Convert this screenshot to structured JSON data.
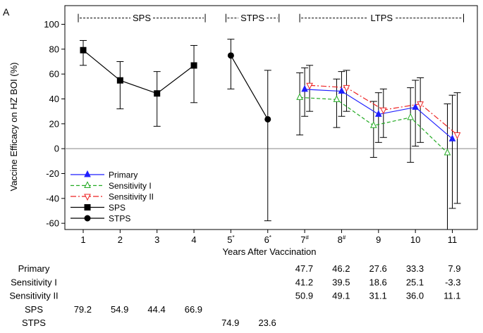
{
  "chart_data": {
    "type": "line",
    "panel_label": "A",
    "xlabel": "Years After Vaccination",
    "ylabel": "Vaccine Efficacy on HZ BOI (%)",
    "ylim": [
      -65,
      115
    ],
    "yticks": [
      -60,
      -40,
      -20,
      0,
      20,
      40,
      60,
      80,
      100
    ],
    "categories": [
      {
        "base": "1",
        "sup": ""
      },
      {
        "base": "2",
        "sup": ""
      },
      {
        "base": "3",
        "sup": ""
      },
      {
        "base": "4",
        "sup": ""
      },
      {
        "base": "5",
        "sup": "*"
      },
      {
        "base": "6",
        "sup": "*"
      },
      {
        "base": "7",
        "sup": "#"
      },
      {
        "base": "8",
        "sup": "#"
      },
      {
        "base": "9",
        "sup": ""
      },
      {
        "base": "10",
        "sup": ""
      },
      {
        "base": "11",
        "sup": ""
      }
    ],
    "reference_line": 0,
    "groups": [
      {
        "label": "SPS",
        "from": 1,
        "to": 4
      },
      {
        "label": "STPS",
        "from": 5,
        "to": 6
      },
      {
        "label": "LTPS",
        "from": 7,
        "to": 11
      }
    ],
    "series": [
      {
        "name": "Primary",
        "color": "#1f1fff",
        "line": "solid",
        "marker": "triangle-up",
        "filled": true,
        "points": [
          {
            "x": 7,
            "y": 47.7,
            "lo": 26.0,
            "hi": 65.0
          },
          {
            "x": 8,
            "y": 46.2,
            "lo": 26.0,
            "hi": 62.0
          },
          {
            "x": 9,
            "y": 27.6,
            "lo": 5.0,
            "hi": 45.0
          },
          {
            "x": 10,
            "y": 33.3,
            "lo": 2.0,
            "hi": 55.0
          },
          {
            "x": 11,
            "y": 7.9,
            "lo": -48.0,
            "hi": 43.0
          }
        ]
      },
      {
        "name": "Sensitivity I",
        "color": "#22aa22",
        "line": "dashed",
        "marker": "triangle-up",
        "filled": false,
        "points": [
          {
            "x": 7,
            "y": 41.2,
            "lo": 11.0,
            "hi": 61.0
          },
          {
            "x": 8,
            "y": 39.5,
            "lo": 17.0,
            "hi": 56.0
          },
          {
            "x": 9,
            "y": 18.6,
            "lo": -7.0,
            "hi": 38.0
          },
          {
            "x": 10,
            "y": 25.1,
            "lo": -11.0,
            "hi": 49.0
          },
          {
            "x": 11,
            "y": -3.3,
            "lo": -65.0,
            "hi": 36.0
          }
        ]
      },
      {
        "name": "Sensitivity II",
        "color": "#ee2222",
        "line": "dashdot",
        "marker": "triangle-down",
        "filled": false,
        "points": [
          {
            "x": 7,
            "y": 50.9,
            "lo": 30.0,
            "hi": 67.0
          },
          {
            "x": 8,
            "y": 49.1,
            "lo": 30.0,
            "hi": 63.0
          },
          {
            "x": 9,
            "y": 31.1,
            "lo": 9.0,
            "hi": 48.0
          },
          {
            "x": 10,
            "y": 36.0,
            "lo": 5.0,
            "hi": 57.0
          },
          {
            "x": 11,
            "y": 11.1,
            "lo": -44.0,
            "hi": 45.0
          }
        ]
      },
      {
        "name": "SPS",
        "color": "#000000",
        "line": "solid",
        "marker": "square",
        "filled": true,
        "points": [
          {
            "x": 1,
            "y": 79.2,
            "lo": 67.0,
            "hi": 87.0
          },
          {
            "x": 2,
            "y": 54.9,
            "lo": 32.0,
            "hi": 70.0
          },
          {
            "x": 3,
            "y": 44.4,
            "lo": 18.0,
            "hi": 62.0
          },
          {
            "x": 4,
            "y": 66.9,
            "lo": 37.0,
            "hi": 83.0
          }
        ]
      },
      {
        "name": "STPS",
        "color": "#000000",
        "line": "solid",
        "marker": "circle",
        "filled": true,
        "points": [
          {
            "x": 5,
            "y": 74.9,
            "lo": 48.0,
            "hi": 88.0
          },
          {
            "x": 6,
            "y": 23.6,
            "lo": -58.0,
            "hi": 63.0
          }
        ]
      }
    ],
    "legend_position": "lower-left",
    "table": {
      "rows": [
        {
          "label": "Primary",
          "values": [
            "",
            "",
            "",
            "",
            "",
            "",
            "47.7",
            "46.2",
            "27.6",
            "33.3",
            "7.9"
          ]
        },
        {
          "label": "Sensitivity I",
          "values": [
            "",
            "",
            "",
            "",
            "",
            "",
            "41.2",
            "39.5",
            "18.6",
            "25.1",
            "-3.3"
          ]
        },
        {
          "label": "Sensitivity II",
          "values": [
            "",
            "",
            "",
            "",
            "",
            "",
            "50.9",
            "49.1",
            "31.1",
            "36.0",
            "11.1"
          ]
        },
        {
          "label": "SPS",
          "values": [
            "79.2",
            "54.9",
            "44.4",
            "66.9",
            "",
            "",
            "",
            "",
            "",
            "",
            ""
          ]
        },
        {
          "label": "STPS",
          "values": [
            "",
            "",
            "",
            "",
            "74.9",
            "23.6",
            "",
            "",
            "",
            "",
            ""
          ]
        }
      ]
    }
  }
}
